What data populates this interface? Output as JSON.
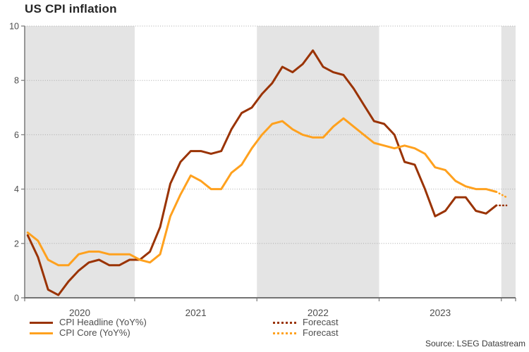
{
  "title": "US CPI inflation",
  "source": "Source: LSEG Datastream",
  "legend": {
    "headline_label": "CPI Headline (YoY%)",
    "core_label": "CPI Core (YoY%)",
    "forecast_headline_label": "Forecast",
    "forecast_core_label": "Forecast"
  },
  "colors": {
    "headline": "#9a3304",
    "core": "#ffa11e",
    "band": "#e4e4e4",
    "grid": "#ababab",
    "axis": "#808080",
    "axis_bottom": "#737373",
    "text": "#4d4d4d",
    "title_text": "#262626"
  },
  "chart_data": {
    "type": "line",
    "title": "US CPI inflation",
    "xlabel": "",
    "ylabel": "",
    "ylim": [
      0,
      10
    ],
    "yticks": [
      0,
      2,
      4,
      6,
      8,
      10
    ],
    "grid": "dotted horizontal gridlines at each ytick",
    "legend_position": "bottom-left, two columns",
    "background_bands": "alternating light-gray vertical shading for even years (2020, 2022, partial 2024)",
    "year_labels": [
      "2020",
      "2021",
      "2022",
      "2023"
    ],
    "shaded_years": [
      2020,
      2022,
      2024
    ],
    "categories": [
      "2020-02",
      "2020-03",
      "2020-04",
      "2020-05",
      "2020-06",
      "2020-07",
      "2020-08",
      "2020-09",
      "2020-10",
      "2020-11",
      "2020-12",
      "2021-01",
      "2021-02",
      "2021-03",
      "2021-04",
      "2021-05",
      "2021-06",
      "2021-07",
      "2021-08",
      "2021-09",
      "2021-10",
      "2021-11",
      "2021-12",
      "2022-01",
      "2022-02",
      "2022-03",
      "2022-04",
      "2022-05",
      "2022-06",
      "2022-07",
      "2022-08",
      "2022-09",
      "2022-10",
      "2022-11",
      "2022-12",
      "2023-01",
      "2023-02",
      "2023-03",
      "2023-04",
      "2023-05",
      "2023-06",
      "2023-07",
      "2023-08",
      "2023-09",
      "2023-10",
      "2023-11",
      "2023-12"
    ],
    "series": [
      {
        "name": "CPI Headline (YoY%)",
        "color": "#9a3304",
        "style": "solid",
        "values": [
          2.3,
          1.5,
          0.3,
          0.1,
          0.6,
          1.0,
          1.3,
          1.4,
          1.2,
          1.2,
          1.4,
          1.4,
          1.7,
          2.6,
          4.2,
          5.0,
          5.4,
          5.4,
          5.3,
          5.4,
          6.2,
          6.8,
          7.0,
          7.5,
          7.9,
          8.5,
          8.3,
          8.6,
          9.1,
          8.5,
          8.3,
          8.2,
          7.7,
          7.1,
          6.5,
          6.4,
          6.0,
          5.0,
          4.9,
          4.0,
          3.0,
          3.2,
          3.7,
          3.7,
          3.2,
          3.1,
          3.4
        ]
      },
      {
        "name": "CPI Core (YoY%)",
        "color": "#ffa11e",
        "style": "solid",
        "values": [
          2.4,
          2.1,
          1.4,
          1.2,
          1.2,
          1.6,
          1.7,
          1.7,
          1.6,
          1.6,
          1.6,
          1.4,
          1.3,
          1.6,
          3.0,
          3.8,
          4.5,
          4.3,
          4.0,
          4.0,
          4.6,
          4.9,
          5.5,
          6.0,
          6.4,
          6.5,
          6.2,
          6.0,
          5.9,
          5.9,
          6.3,
          6.6,
          6.3,
          6.0,
          5.7,
          5.6,
          5.5,
          5.6,
          5.5,
          5.3,
          4.8,
          4.7,
          4.3,
          4.1,
          4.0,
          4.0,
          3.9
        ]
      }
    ],
    "forecast": {
      "categories": [
        "2024-01"
      ],
      "series": [
        {
          "name": "Forecast",
          "color": "#9a3304",
          "style": "dotted",
          "values": [
            3.4
          ]
        },
        {
          "name": "Forecast",
          "color": "#ffa11e",
          "style": "dotted",
          "values": [
            3.7
          ]
        }
      ]
    }
  }
}
